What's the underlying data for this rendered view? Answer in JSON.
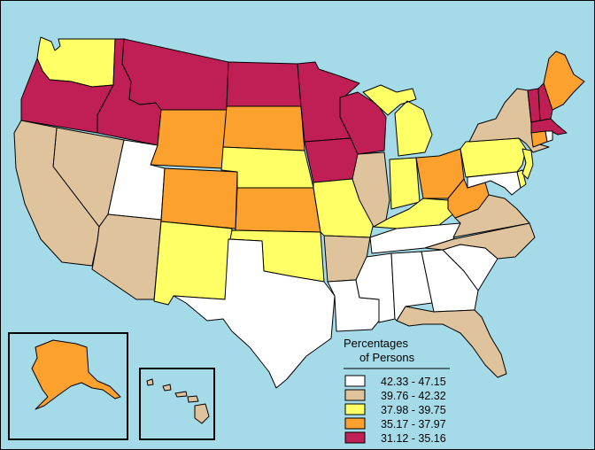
{
  "colors": {
    "ocean": "#a5dbe9",
    "class1": "#ffffff",
    "class2": "#dfc39c",
    "class3": "#ffff66",
    "class4": "#fca12e",
    "class5": "#c01f55"
  },
  "legend": {
    "title_line1": "Percentages",
    "title_line2": "of Persons",
    "classes": [
      {
        "label": "42.33 - 47.15",
        "color": "#ffffff"
      },
      {
        "label": "39.76 - 42.32",
        "color": "#dfc39c"
      },
      {
        "label": "37.98 - 39.75",
        "color": "#ffff66"
      },
      {
        "label": "35.17 - 37.97",
        "color": "#fca12e"
      },
      {
        "label": "31.12 - 35.16",
        "color": "#c01f55"
      }
    ]
  },
  "states": {
    "WA": 3,
    "OR": 5,
    "ID": 5,
    "MT": 5,
    "ND": 5,
    "MN": 5,
    "WI": 5,
    "IA": 5,
    "VT": 5,
    "NH": 5,
    "MA": 5,
    "WY": 4,
    "SD": 4,
    "CO": 4,
    "KS": 4,
    "OH": 4,
    "WV": 4,
    "ME": 4,
    "CT": 4,
    "AK": 4,
    "NE": 3,
    "NM": 3,
    "OK": 3,
    "MO": 3,
    "IN": 3,
    "MI": 3,
    "KY": 3,
    "PA": 3,
    "NJ": 3,
    "DE": 3,
    "CA": 2,
    "NV": 2,
    "AZ": 2,
    "AR": 2,
    "IL": 2,
    "NY": 2,
    "VA": 2,
    "NC": 2,
    "FL": 2,
    "HI": 2,
    "UT": 1,
    "TX": 1,
    "LA": 1,
    "MS": 1,
    "AL": 1,
    "GA": 1,
    "SC": 1,
    "TN": 1,
    "MD": 1,
    "RI": 1
  }
}
